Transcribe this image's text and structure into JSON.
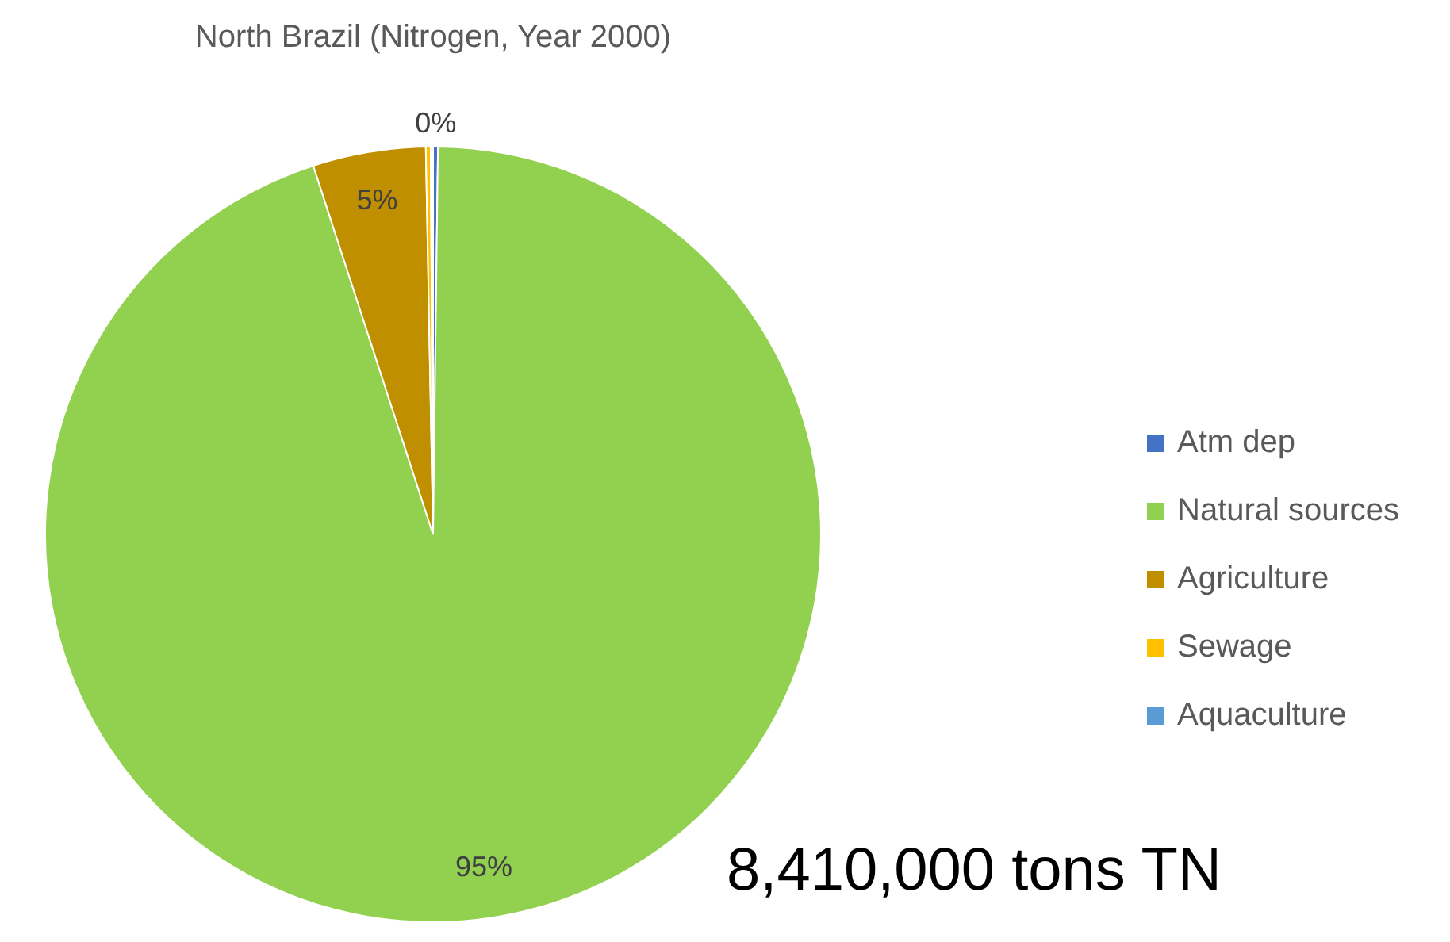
{
  "chart_data": {
    "type": "pie",
    "title": "North Brazil (Nitrogen, Year 2000)",
    "categories": [
      "Atm dep",
      "Natural sources",
      "Agriculture",
      "Sewage",
      "Aquaculture"
    ],
    "values": [
      0.2,
      94.8,
      4.7,
      0.2,
      0.1
    ],
    "colors": [
      "#4472c4",
      "#92d050",
      "#bf8f00",
      "#ffc000",
      "#5b9bd5"
    ],
    "value_labels": [
      "0%",
      "95%",
      "5%",
      null,
      null
    ],
    "legend": "right",
    "annotations": [
      "8,410,000 tons TN"
    ]
  }
}
